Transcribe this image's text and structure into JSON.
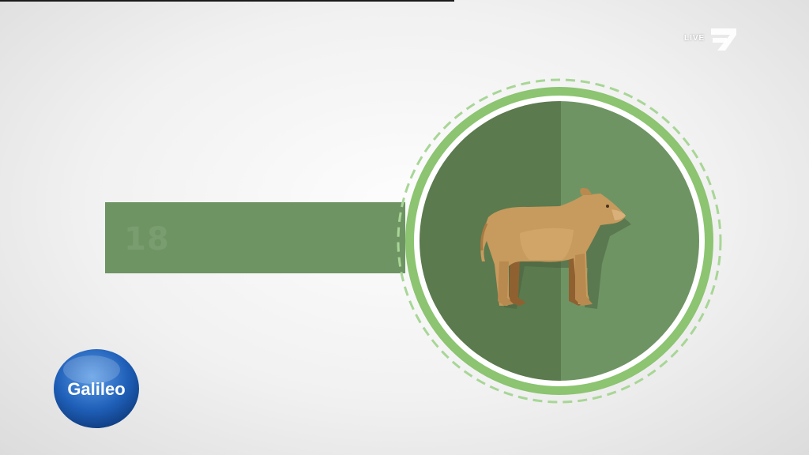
{
  "banner": {
    "number": "18"
  },
  "channel": {
    "live_label": "LIVE",
    "logo_icon": "prosieben-7-logo-icon"
  },
  "show": {
    "logo_text": "Galileo",
    "logo_icon": "galileo-logo-icon"
  },
  "medallion": {
    "icon": "calf-icon"
  },
  "colors": {
    "banner": "#6f9464",
    "ring": "#8cc471",
    "disc_dark": "#5b7a4e",
    "disc_light": "#6f9464",
    "calf": "#c79a5d",
    "background": "#efefef"
  }
}
